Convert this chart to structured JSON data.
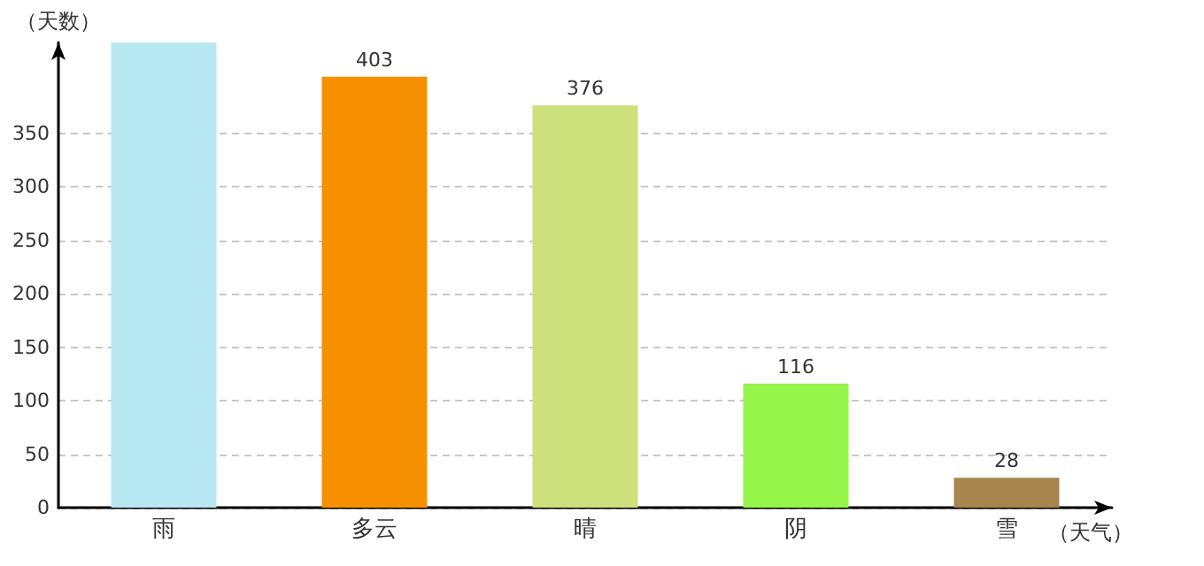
{
  "chart_data": {
    "type": "bar",
    "categories": [
      "雨",
      "多云",
      "晴",
      "阴",
      "雪"
    ],
    "values": [
      435,
      403,
      376,
      116,
      28
    ],
    "value_labels": [
      null,
      "403",
      "376",
      "116",
      "28"
    ],
    "colors": [
      "#b7e7f1",
      "#f79000",
      "#cde07c",
      "#96f54a",
      "#a6854e"
    ],
    "xlabel": "（天气）",
    "ylabel": "（天数）",
    "ylim": [
      0,
      435
    ],
    "yticks": [
      0,
      50,
      100,
      150,
      200,
      250,
      300,
      350
    ],
    "grid": "y"
  }
}
